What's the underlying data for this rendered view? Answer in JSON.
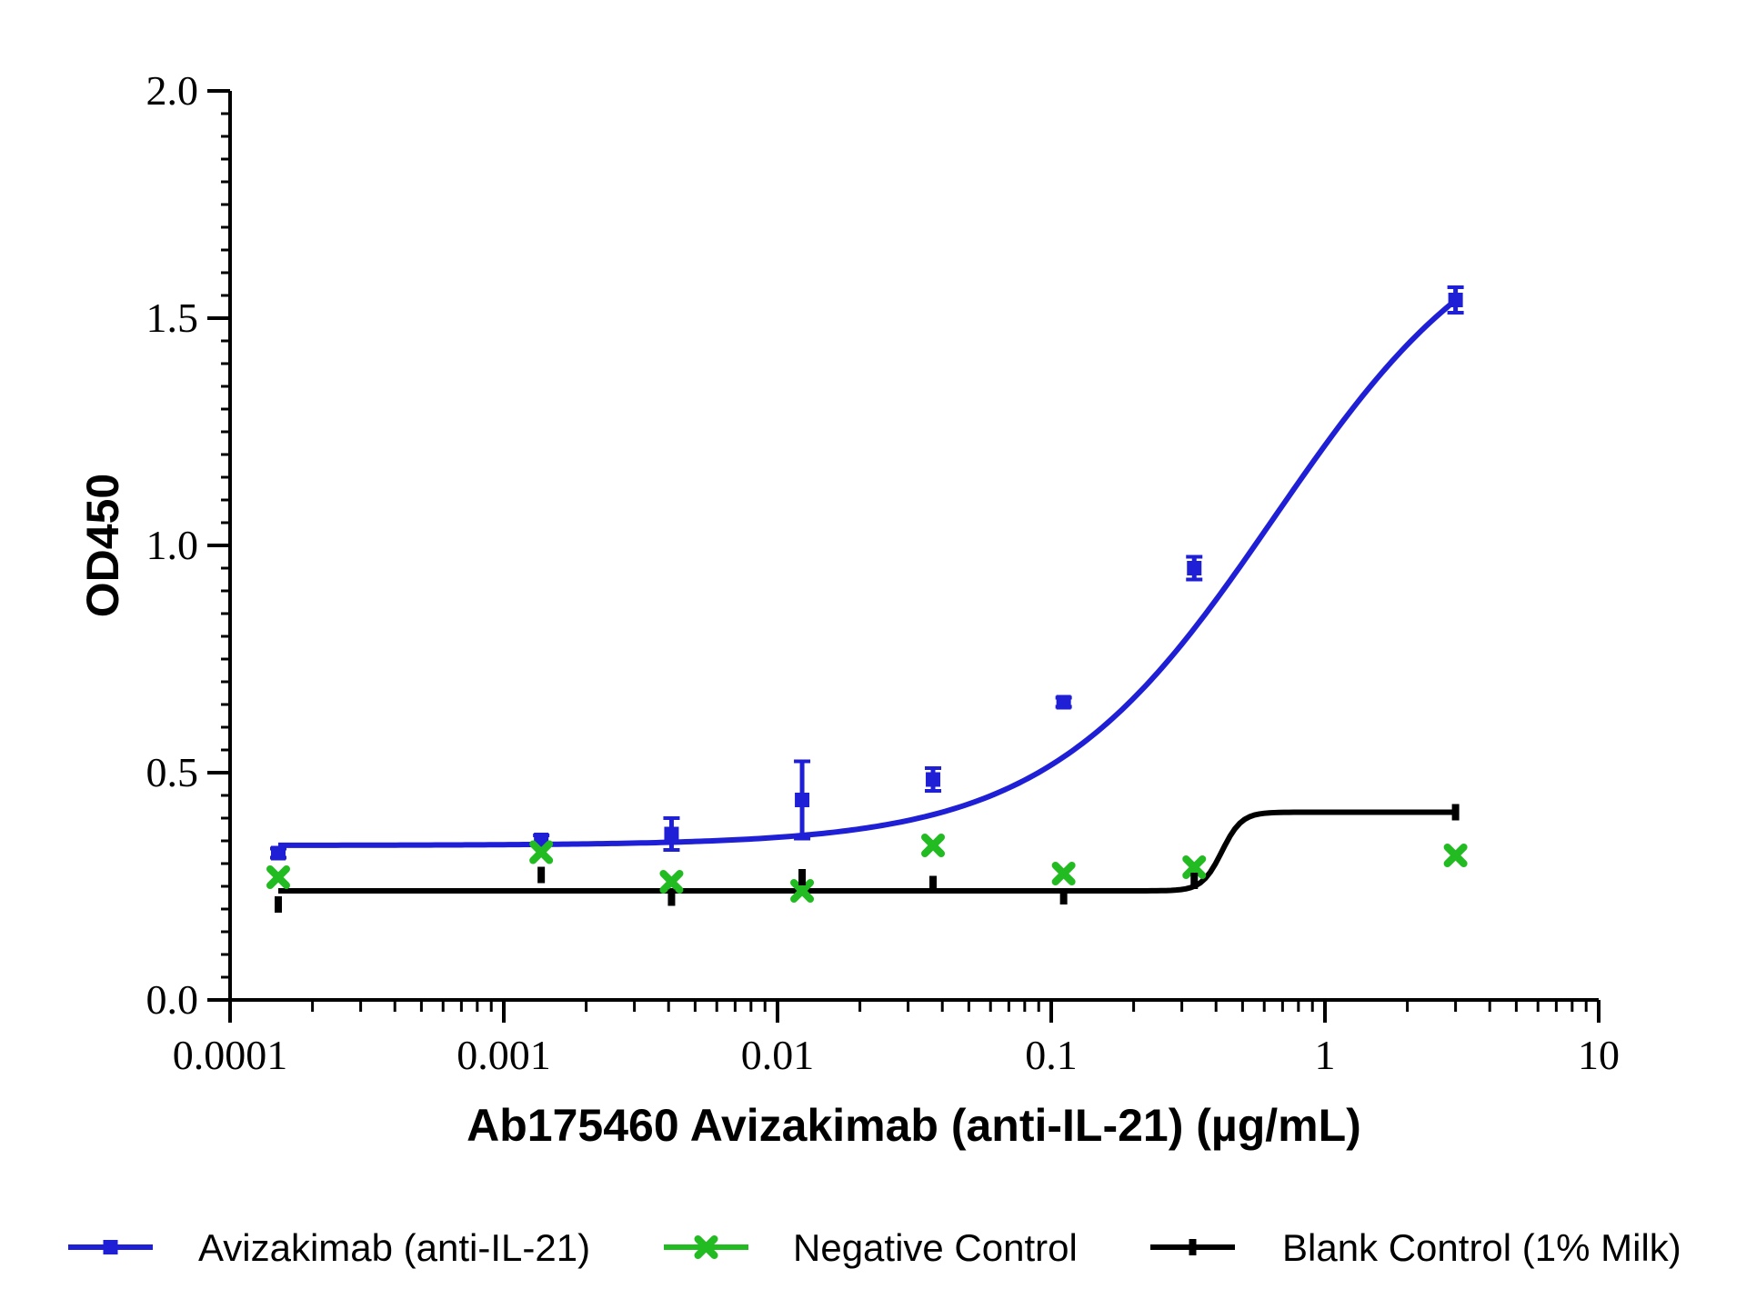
{
  "chart_data": {
    "type": "scatter",
    "xlabel": "Ab175460  Avizakimab (anti-IL-21) (µg/mL)",
    "ylabel": "OD450",
    "xscale": "log",
    "xlim": [
      0.0001,
      10
    ],
    "ylim": [
      0,
      2
    ],
    "x_ticks": [
      {
        "value": 0.0001,
        "label": "0.0001"
      },
      {
        "value": 0.001,
        "label": "0.001"
      },
      {
        "value": 0.01,
        "label": "0.01"
      },
      {
        "value": 0.1,
        "label": "0.1"
      },
      {
        "value": 1,
        "label": "1"
      },
      {
        "value": 10,
        "label": "10"
      }
    ],
    "y_ticks": [
      {
        "value": 0,
        "label": "0.0"
      },
      {
        "value": 0.5,
        "label": "0.5"
      },
      {
        "value": 1,
        "label": "1.0"
      },
      {
        "value": 1.5,
        "label": "1.5"
      },
      {
        "value": 2,
        "label": "2.0"
      }
    ],
    "grid": false,
    "legend_position": "bottom",
    "series": [
      {
        "name": "Avizakimab (anti-IL-21)",
        "color": "#1f1fd6",
        "marker": "square",
        "points": [
          {
            "x": 0.00015,
            "y": 0.323,
            "err": 0.01
          },
          {
            "x": 0.00137,
            "y": 0.352,
            "err": 0.01
          },
          {
            "x": 0.0041,
            "y": 0.365,
            "err": 0.035
          },
          {
            "x": 0.0123,
            "y": 0.44,
            "err": 0.085
          },
          {
            "x": 0.037,
            "y": 0.485,
            "err": 0.025
          },
          {
            "x": 0.111,
            "y": 0.655,
            "err": 0.01
          },
          {
            "x": 0.333,
            "y": 0.95,
            "err": 0.025
          },
          {
            "x": 3.0,
            "y": 1.54,
            "err": 0.028
          }
        ],
        "fit": {
          "model": "4PL",
          "bottom": 0.34,
          "top": 1.78,
          "ec50": 0.65,
          "hill": 1.05
        }
      },
      {
        "name": "Negative Control",
        "color": "#22bb22",
        "marker": "x",
        "points": [
          {
            "x": 0.00015,
            "y": 0.27
          },
          {
            "x": 0.00137,
            "y": 0.325
          },
          {
            "x": 0.0041,
            "y": 0.26
          },
          {
            "x": 0.0123,
            "y": 0.24
          },
          {
            "x": 0.037,
            "y": 0.34
          },
          {
            "x": 0.111,
            "y": 0.278
          },
          {
            "x": 0.333,
            "y": 0.292
          },
          {
            "x": 3.0,
            "y": 0.318
          }
        ]
      },
      {
        "name": "Blank Control (1% Milk)",
        "color": "#000000",
        "marker": "dash",
        "points": [
          {
            "x": 0.00015,
            "y": 0.21
          },
          {
            "x": 0.00137,
            "y": 0.275
          },
          {
            "x": 0.0041,
            "y": 0.225
          },
          {
            "x": 0.0123,
            "y": 0.27
          },
          {
            "x": 0.037,
            "y": 0.255
          },
          {
            "x": 0.111,
            "y": 0.228
          },
          {
            "x": 0.333,
            "y": 0.262
          },
          {
            "x": 3.0,
            "y": 0.413
          }
        ],
        "fit": {
          "model": "4PL",
          "bottom": 0.24,
          "top": 0.413,
          "ec50": 0.42,
          "hill": 12
        }
      }
    ]
  }
}
